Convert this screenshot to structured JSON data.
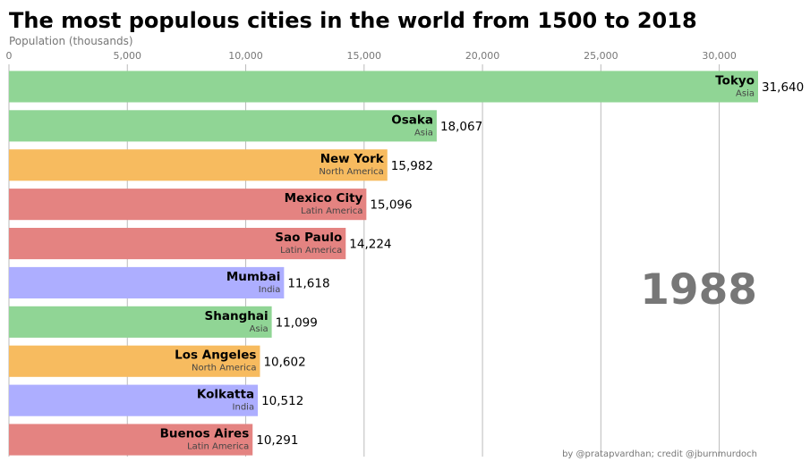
{
  "chart_data": {
    "type": "bar",
    "orientation": "horizontal",
    "title": "The most populous cities in the world from 1500 to 2018",
    "xlabel": "Population (thousands)",
    "xlim": [
      0,
      31640
    ],
    "xticks": [
      0,
      5000,
      10000,
      15000,
      20000,
      25000,
      30000
    ],
    "xtick_labels": [
      "0",
      "5,000",
      "10,000",
      "15,000",
      "20,000",
      "25,000",
      "30,000"
    ],
    "grid": "vertical",
    "year": "1988",
    "credit": "by @pratapvardhan; credit @jburnmurdoch",
    "group_colors": {
      "Asia": "#90d595",
      "North America": "#f7bb5f",
      "Latin America": "#e48381",
      "India": "#aafbff"
    },
    "bars": [
      {
        "name": "Tokyo",
        "group": "Asia",
        "value": 31640,
        "label": "31,640"
      },
      {
        "name": "Osaka",
        "group": "Asia",
        "value": 18067,
        "label": "18,067"
      },
      {
        "name": "New York",
        "group": "North America",
        "value": 15982,
        "label": "15,982"
      },
      {
        "name": "Mexico City",
        "group": "Latin America",
        "value": 15096,
        "label": "15,096"
      },
      {
        "name": "Sao Paulo",
        "group": "Latin America",
        "value": 14224,
        "label": "14,224"
      },
      {
        "name": "Mumbai",
        "group": "India",
        "value": 11618,
        "label": "11,618"
      },
      {
        "name": "Shanghai",
        "group": "Asia",
        "value": 11099,
        "label": "11,099"
      },
      {
        "name": "Los Angeles",
        "group": "North America",
        "value": 10602,
        "label": "10,602"
      },
      {
        "name": "Kolkatta",
        "group": "India",
        "value": 10512,
        "label": "10,512"
      },
      {
        "name": "Buenos Aires",
        "group": "Latin America",
        "value": 10291,
        "label": "10,291"
      }
    ]
  }
}
